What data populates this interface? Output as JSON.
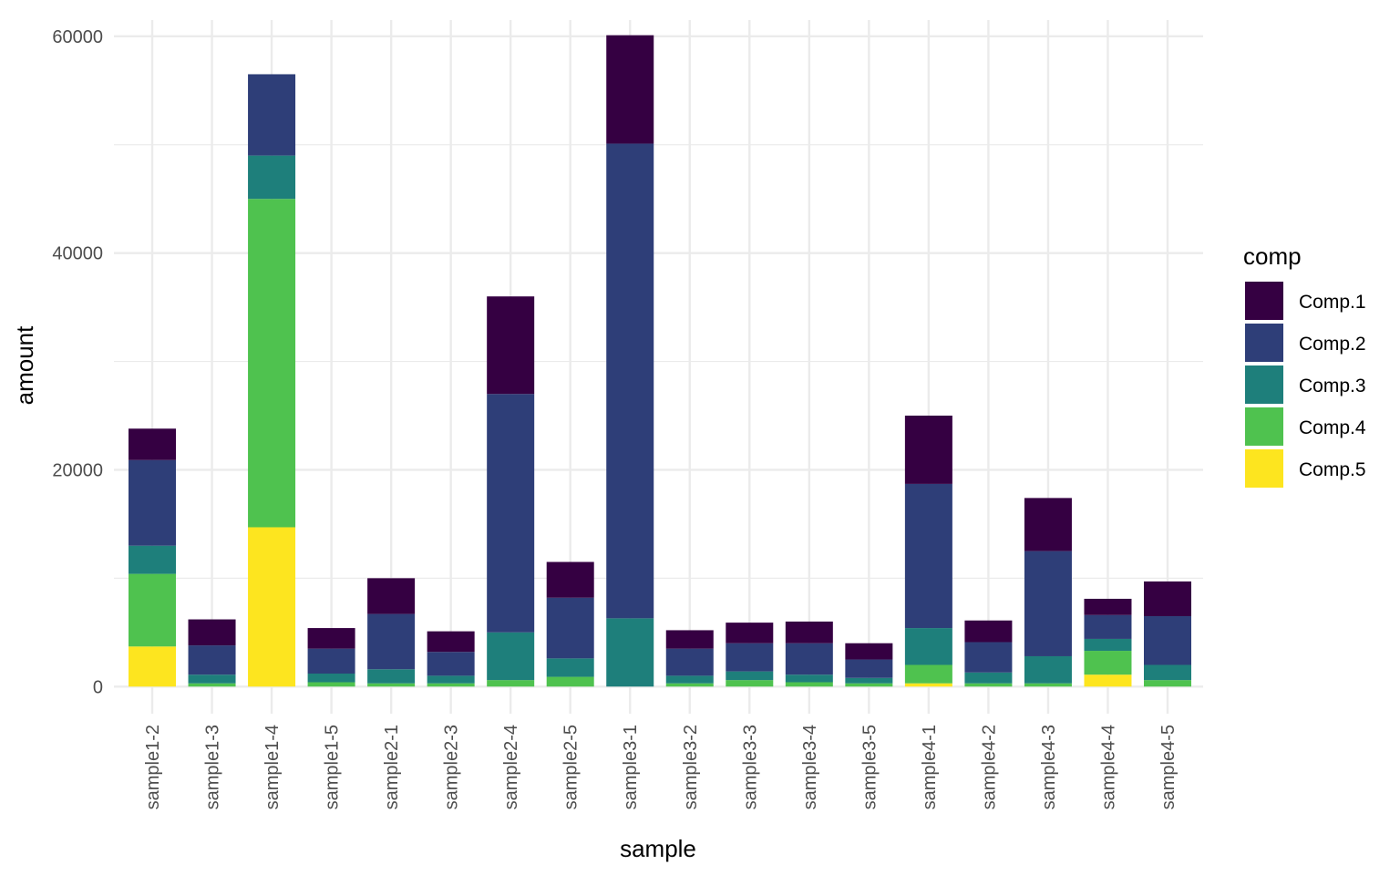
{
  "chart_data": {
    "type": "bar",
    "stacked": true,
    "xlabel": "sample",
    "ylabel": "amount",
    "ylim": [
      -2500,
      61500
    ],
    "yticks": [
      0,
      20000,
      40000,
      60000
    ],
    "grid": true,
    "legend": {
      "title": "comp",
      "placement": "right"
    },
    "categories": [
      "sample1-2",
      "sample1-3",
      "sample1-4",
      "sample1-5",
      "sample2-1",
      "sample2-3",
      "sample2-4",
      "sample2-5",
      "sample3-1",
      "sample3-2",
      "sample3-3",
      "sample3-4",
      "sample3-5",
      "sample4-1",
      "sample4-2",
      "sample4-3",
      "sample4-4",
      "sample4-5"
    ],
    "series": [
      {
        "name": "Comp.1",
        "color": "#350042",
        "values": [
          2900,
          2400,
          0,
          1900,
          3300,
          1900,
          9000,
          3300,
          10000,
          1700,
          1900,
          2000,
          1500,
          6300,
          2000,
          4900,
          1500,
          3200
        ]
      },
      {
        "name": "Comp.2",
        "color": "#2e3e78",
        "values": [
          7900,
          2700,
          7500,
          2300,
          5100,
          2200,
          22000,
          5600,
          43800,
          2500,
          2600,
          2900,
          1700,
          13300,
          2800,
          9700,
          2200,
          4500
        ]
      },
      {
        "name": "Comp.3",
        "color": "#1e7f7b",
        "values": [
          2600,
          800,
          4000,
          800,
          1300,
          700,
          4400,
          1700,
          6300,
          700,
          800,
          700,
          500,
          3400,
          1000,
          2500,
          1100,
          1400
        ]
      },
      {
        "name": "Comp.4",
        "color": "#4fc24f",
        "values": [
          6700,
          300,
          30300,
          400,
          300,
          300,
          600,
          900,
          0,
          300,
          600,
          400,
          300,
          1700,
          300,
          300,
          2200,
          600
        ]
      },
      {
        "name": "Comp.5",
        "color": "#fde51f",
        "values": [
          3700,
          0,
          14700,
          0,
          0,
          0,
          0,
          0,
          0,
          0,
          0,
          0,
          0,
          300,
          0,
          0,
          1100,
          0
        ]
      }
    ]
  }
}
